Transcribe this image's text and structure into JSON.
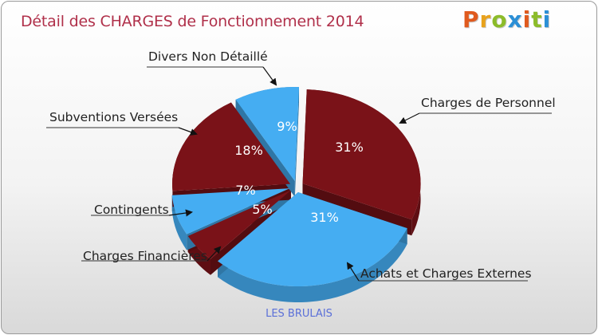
{
  "title": "Détail des CHARGES de Fonctionnement 2014",
  "brand": {
    "letters": [
      {
        "ch": "P",
        "color": "#e05a1e"
      },
      {
        "ch": "r",
        "color": "#e8a21c"
      },
      {
        "ch": "o",
        "color": "#8cbc2a"
      },
      {
        "ch": "x",
        "color": "#2b8fd6"
      },
      {
        "ch": "i",
        "color": "#e05a1e"
      },
      {
        "ch": "t",
        "color": "#8cbc2a"
      },
      {
        "ch": "i",
        "color": "#2b8fd6"
      }
    ]
  },
  "subtitle": "LES BRULAIS",
  "colors": {
    "dark_red": "#7a1218",
    "dark_red_side": "#5a0c10",
    "blue": "#45adf2",
    "blue_side": "#2a8fd8"
  },
  "chart_data": {
    "type": "pie",
    "title": "Détail des CHARGES de Fonctionnement 2014",
    "unit": "%",
    "slices": [
      {
        "label": "Charges de Personnel",
        "value": 31,
        "display": "31%",
        "color": "#7a1218"
      },
      {
        "label": "Achats et Charges Externes",
        "value": 31,
        "display": "31%",
        "color": "#45adf2"
      },
      {
        "label": "Charges Financières",
        "value": 5,
        "display": "5%",
        "color": "#7a1218"
      },
      {
        "label": "Contingents",
        "value": 7,
        "display": "7%",
        "color": "#45adf2"
      },
      {
        "label": "Subventions Versées",
        "value": 18,
        "display": "18%",
        "color": "#7a1218"
      },
      {
        "label": "Divers Non Détaillé",
        "value": 9,
        "display": "9%",
        "color": "#45adf2"
      }
    ]
  }
}
